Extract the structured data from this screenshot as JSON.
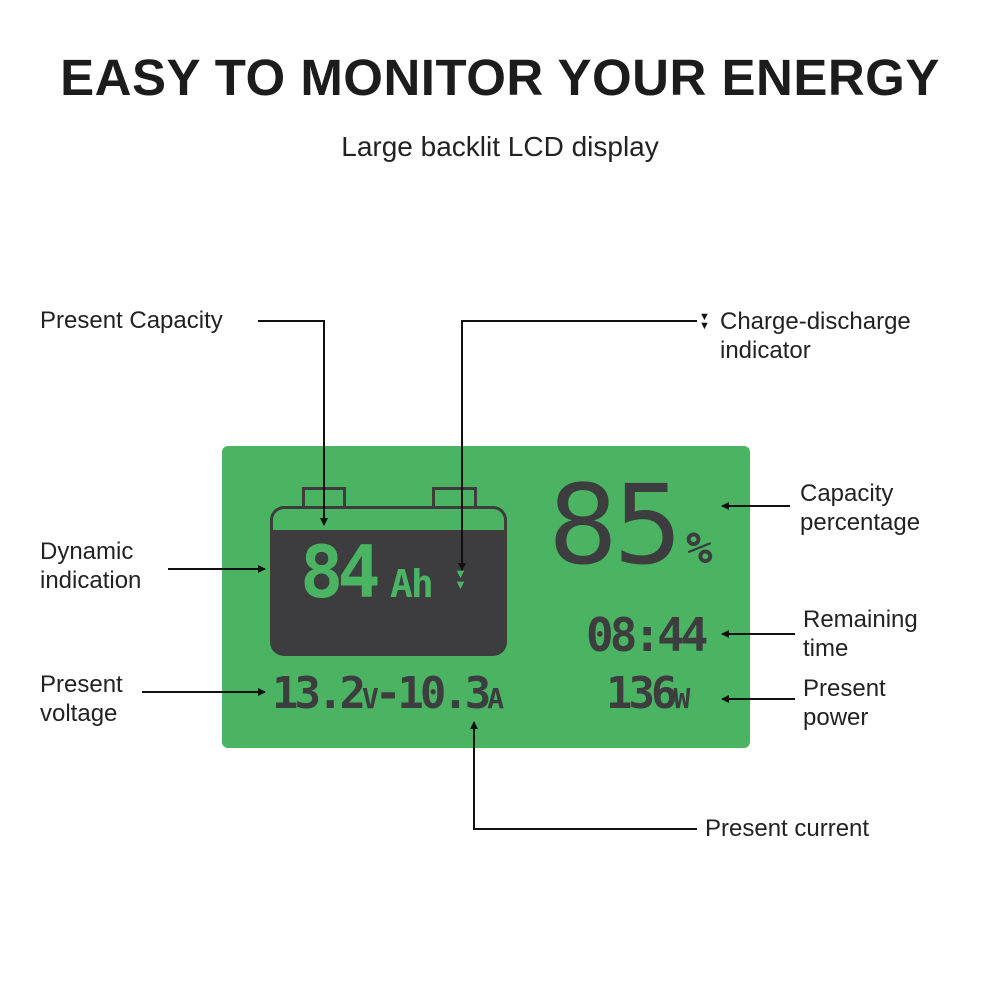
{
  "header": {
    "title": "EASY TO MONITOR YOUR ENERGY",
    "subtitle": "Large backlit LCD display"
  },
  "colors": {
    "lcd_background": "#4bb462",
    "lcd_foreground": "#3d3d3f"
  },
  "display": {
    "capacity_ah": "84",
    "capacity_unit": "Ah",
    "percentage": "85",
    "percentage_unit": "%",
    "remaining_time": "08:44",
    "voltage": "13.2",
    "voltage_unit": "V",
    "separator": "-",
    "current": "10.3",
    "current_unit": "A",
    "power": "136",
    "power_unit": "W",
    "charge_indicator_icon": "double-down-triangle-icon"
  },
  "callouts": {
    "present_capacity": "Present Capacity",
    "charge_discharge_1": "Charge-discharge",
    "charge_discharge_2": "indicator",
    "dynamic_1": "Dynamic",
    "dynamic_2": "indication",
    "voltage_1": "Present",
    "voltage_2": "voltage",
    "capacity_pct_1": "Capacity",
    "capacity_pct_2": "percentage",
    "remaining_1": "Remaining",
    "remaining_2": "time",
    "power_1": "Present",
    "power_2": "power",
    "current": "Present current"
  }
}
